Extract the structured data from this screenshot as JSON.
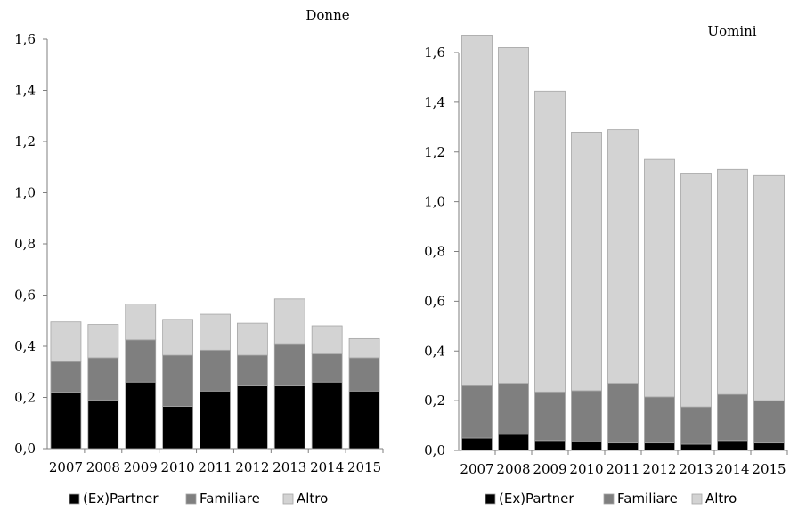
{
  "colors": {
    "ex_partner": "#000000",
    "familiare": "#7f7f7f",
    "altro": "#d3d3d3",
    "bar_stroke": "#a6a6a6",
    "axis": "#7f7f7f"
  },
  "chart_data": [
    {
      "type": "bar",
      "stacked": true,
      "title": "Donne",
      "categories": [
        "2007",
        "2008",
        "2009",
        "2010",
        "2011",
        "2012",
        "2013",
        "2014",
        "2015"
      ],
      "ylim": [
        0,
        1.6
      ],
      "yticks": [
        "0,0",
        "0,2",
        "0,4",
        "0,6",
        "0,8",
        "1,0",
        "1,2",
        "1,4",
        "1,6"
      ],
      "grid": false,
      "legend": "bottom",
      "series": [
        {
          "name": "(Ex)Partner",
          "values": [
            0.22,
            0.19,
            0.26,
            0.165,
            0.225,
            0.245,
            0.245,
            0.26,
            0.225
          ]
        },
        {
          "name": "Familiare",
          "values": [
            0.12,
            0.165,
            0.165,
            0.2,
            0.16,
            0.12,
            0.165,
            0.11,
            0.13
          ]
        },
        {
          "name": "Altro",
          "values": [
            0.155,
            0.13,
            0.14,
            0.14,
            0.14,
            0.125,
            0.175,
            0.11,
            0.075
          ]
        }
      ]
    },
    {
      "type": "bar",
      "stacked": true,
      "title": "Uomini",
      "categories": [
        "2007",
        "2008",
        "2009",
        "2010",
        "2011",
        "2012",
        "2013",
        "2014",
        "2015"
      ],
      "ylim": [
        0,
        1.6
      ],
      "yticks": [
        "0,0",
        "0,2",
        "0,4",
        "0,6",
        "0,8",
        "1,0",
        "1,2",
        "1,4",
        "1,6"
      ],
      "grid": false,
      "legend": "bottom",
      "series": [
        {
          "name": "(Ex)Partner",
          "values": [
            0.05,
            0.065,
            0.04,
            0.035,
            0.03,
            0.03,
            0.025,
            0.04,
            0.03
          ]
        },
        {
          "name": "Familiare",
          "values": [
            0.21,
            0.205,
            0.195,
            0.205,
            0.24,
            0.185,
            0.15,
            0.185,
            0.17
          ]
        },
        {
          "name": "Altro",
          "values": [
            1.41,
            1.35,
            1.21,
            1.04,
            1.02,
            0.955,
            0.94,
            0.905,
            0.905
          ]
        }
      ]
    }
  ]
}
